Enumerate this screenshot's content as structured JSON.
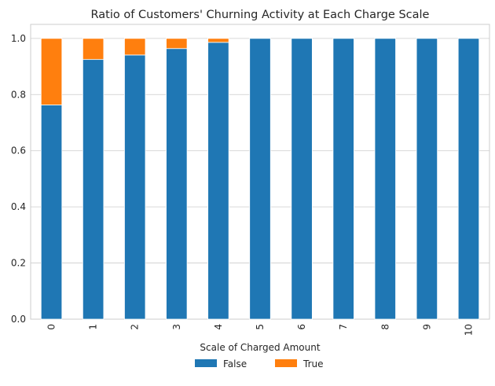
{
  "chart_data": {
    "type": "bar",
    "stacked": true,
    "title": "Ratio of Customers' Churning Activity at Each Charge Scale",
    "xlabel": "Scale of Charged Amount",
    "ylabel": "",
    "ylim": [
      0,
      1.05
    ],
    "yticks": [
      "0.0",
      "0.2",
      "0.4",
      "0.6",
      "0.8",
      "1.0"
    ],
    "grid": true,
    "legend_placement": "bottom-center",
    "categories": [
      "0",
      "1",
      "2",
      "3",
      "4",
      "5",
      "6",
      "7",
      "8",
      "9",
      "10"
    ],
    "series": [
      {
        "name": "False",
        "color": "#1f77b4",
        "values": [
          0.763,
          0.925,
          0.941,
          0.964,
          0.986,
          1.0,
          1.0,
          1.0,
          1.0,
          1.0,
          1.0
        ]
      },
      {
        "name": "True",
        "color": "#ff7f0e",
        "values": [
          0.237,
          0.075,
          0.059,
          0.036,
          0.014,
          0.0,
          0.0,
          0.0,
          0.0,
          0.0,
          0.0
        ]
      }
    ]
  }
}
